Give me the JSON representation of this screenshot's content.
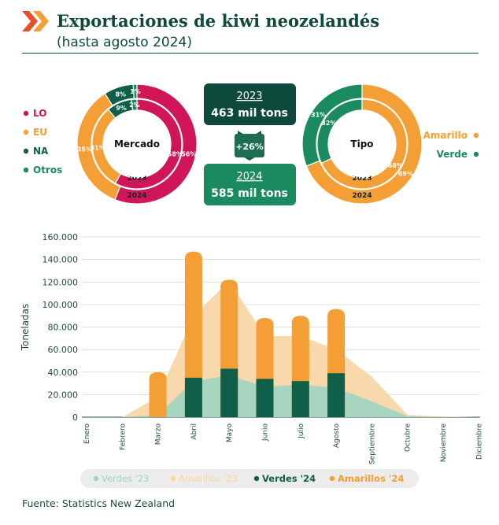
{
  "title": "Exportaciones de kiwi neozelandés",
  "subtitle": "(hasta agosto 2024)",
  "source": "Fuente: Statistics New Zealand",
  "colors": {
    "dark_green": "#0f5f49",
    "green": "#1b8a5f",
    "orange": "#f49f35",
    "magenta": "#d01657",
    "light_green": "#9fd5c1",
    "light_orange": "#f8d4a3",
    "text": "#0d4a3c"
  },
  "market_legend": [
    {
      "label": "LO",
      "color": "#d01657"
    },
    {
      "label": "EU",
      "color": "#f49f35"
    },
    {
      "label": "NA",
      "color": "#0f5f49"
    },
    {
      "label": "Otros",
      "color": "#1b8a5f"
    }
  ],
  "type_legend": [
    {
      "label": "Amarillo",
      "color": "#f49f35"
    },
    {
      "label": "Verde",
      "color": "#1b8a5f"
    }
  ],
  "summary": {
    "y2023_year": "2023",
    "y2023_value": "463 mil tons",
    "change": "+26%",
    "y2024_year": "2024",
    "y2024_value": "585 mil tons"
  },
  "chart_data": [
    {
      "type": "pie",
      "title": "Mercado",
      "rings": [
        {
          "year": "2023",
          "slices": [
            {
              "label": "LO",
              "value": 58
            },
            {
              "label": "EU",
              "value": 31
            },
            {
              "label": "NA",
              "value": 9
            },
            {
              "label": "Otros",
              "value": 2
            }
          ]
        },
        {
          "year": "2024",
          "slices": [
            {
              "label": "LO",
              "value": 56
            },
            {
              "label": "EU",
              "value": 35
            },
            {
              "label": "NA",
              "value": 8
            },
            {
              "label": "Otros",
              "value": 1
            }
          ]
        }
      ]
    },
    {
      "type": "pie",
      "title": "Tipo",
      "rings": [
        {
          "year": "2023",
          "slices": [
            {
              "label": "Amarillo",
              "value": 68
            },
            {
              "label": "Verde",
              "value": 32
            }
          ]
        },
        {
          "year": "2024",
          "slices": [
            {
              "label": "Amarillo",
              "value": 69
            },
            {
              "label": "Verde",
              "value": 31
            }
          ]
        }
      ]
    },
    {
      "type": "bar",
      "ylabel": "Toneladas",
      "ylim": [
        0,
        160000
      ],
      "yticks": [
        "0",
        "20.000",
        "40.000",
        "60.000",
        "80.000",
        "100.000",
        "120.000",
        "140.000",
        "160.000"
      ],
      "categories": [
        "Enero",
        "Febrero",
        "Marzo",
        "Abril",
        "Mayo",
        "Junio",
        "Julio",
        "Agosto",
        "Septiembre",
        "Octubre",
        "Noviembre",
        "Diciembre"
      ],
      "series": [
        {
          "name": "Verdes '23",
          "kind": "area",
          "values": [
            0,
            0,
            2000,
            32000,
            37000,
            27000,
            29000,
            26000,
            14000,
            1000,
            0,
            0
          ]
        },
        {
          "name": "Amarillos '23",
          "kind": "area",
          "values": [
            0,
            0,
            18000,
            90000,
            121000,
            72000,
            72000,
            60000,
            36000,
            2000,
            500,
            0
          ]
        },
        {
          "name": "Verdes '24",
          "kind": "bar",
          "values": [
            0,
            0,
            0,
            35000,
            43000,
            34000,
            32000,
            39000,
            0,
            0,
            0,
            0
          ]
        },
        {
          "name": "Amarillos '24",
          "kind": "bar",
          "values": [
            0,
            0,
            40000,
            147000,
            122000,
            88000,
            90000,
            96000,
            0,
            0,
            0,
            0
          ]
        }
      ],
      "legend_position": "bottom"
    }
  ]
}
